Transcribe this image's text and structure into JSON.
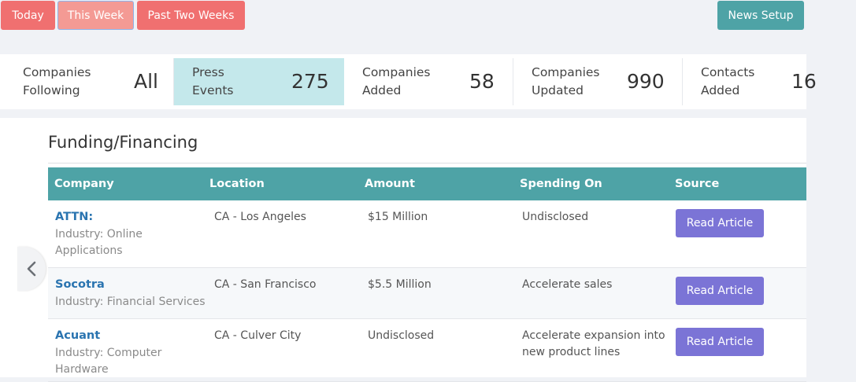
{
  "filters": {
    "today": "Today",
    "this_week": "This Week",
    "past_two_weeks": "Past Two Weeks",
    "news_setup": "News Setup"
  },
  "stats": [
    {
      "label_1": "Companies",
      "label_2": "Following",
      "value": "All",
      "active": false
    },
    {
      "label_1": "Press",
      "label_2": "Events",
      "value": "275",
      "active": true
    },
    {
      "label_1": "Companies",
      "label_2": "Added",
      "value": "58",
      "active": false
    },
    {
      "label_1": "Companies",
      "label_2": "Updated",
      "value": "990",
      "active": false
    },
    {
      "label_1": "Contacts",
      "label_2": "Added",
      "value": "16",
      "active": false
    }
  ],
  "section": {
    "title": "Funding/Financing"
  },
  "table": {
    "headers": [
      "Company",
      "Location",
      "Amount",
      "Spending On",
      "Source"
    ],
    "rows": [
      {
        "company": "ATTN:",
        "industry_1": "Industry: Online",
        "industry_2": "Applications",
        "location": "CA - Los Angeles",
        "amount": "$15 Million",
        "spending_1": "Undisclosed",
        "spending_2": "",
        "source_label": "Read Article"
      },
      {
        "company": "Socotra",
        "industry_1": "Industry: Financial Services",
        "industry_2": "",
        "location": "CA - San Francisco",
        "amount": "$5.5 Million",
        "spending_1": "Accelerate sales",
        "spending_2": "",
        "source_label": "Read Article"
      },
      {
        "company": "Acuant",
        "industry_1": "Industry: Computer",
        "industry_2": "Hardware",
        "location": "CA - Culver City",
        "amount": "Undisclosed",
        "spending_1": "Accelerate expansion into",
        "spending_2": "new product lines",
        "source_label": "Read Article"
      }
    ]
  },
  "icons": {
    "prev": "chevron-left-icon"
  },
  "colors": {
    "coral": "#f07070",
    "teal": "#4ea3a6",
    "active_stat": "#c4e8eb",
    "read_button": "#7b74d6",
    "link": "#2a74b0"
  }
}
